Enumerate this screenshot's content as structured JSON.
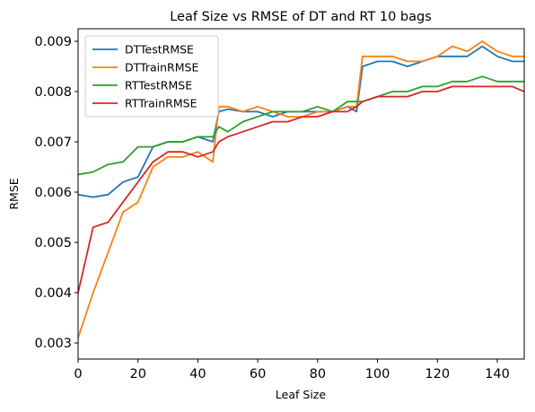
{
  "chart_data": {
    "type": "line",
    "title": "Leaf Size vs RMSE of DT and RT 10 bags",
    "xlabel": "Leaf Size",
    "ylabel": "RMSE",
    "xlim": [
      0,
      149
    ],
    "ylim": [
      0.00268,
      0.00925
    ],
    "xticks": [
      0,
      20,
      40,
      60,
      80,
      100,
      120,
      140
    ],
    "yticks": [
      0.003,
      0.004,
      0.005,
      0.006,
      0.007,
      0.008,
      0.009
    ],
    "ytick_labels": [
      "0.003",
      "0.004",
      "0.005",
      "0.006",
      "0.007",
      "0.008",
      "0.009"
    ],
    "grid": false,
    "legend_position": "top-left",
    "x": [
      0,
      5,
      10,
      15,
      20,
      25,
      30,
      35,
      40,
      45,
      47,
      50,
      55,
      60,
      65,
      70,
      75,
      80,
      85,
      90,
      93,
      95,
      100,
      105,
      110,
      115,
      120,
      125,
      130,
      135,
      140,
      145,
      149
    ],
    "series": [
      {
        "name": "DTTestRMSE",
        "color": "#1f77b4",
        "values": [
          0.00595,
          0.0059,
          0.00595,
          0.0062,
          0.0063,
          0.0069,
          0.007,
          0.007,
          0.0071,
          0.007,
          0.0076,
          0.00765,
          0.0076,
          0.0076,
          0.0075,
          0.0076,
          0.0076,
          0.0076,
          0.0076,
          0.0077,
          0.0076,
          0.0085,
          0.0086,
          0.0086,
          0.0085,
          0.0086,
          0.0087,
          0.0087,
          0.0087,
          0.0089,
          0.0087,
          0.0086,
          0.0086
        ]
      },
      {
        "name": "DTTrainRMSE",
        "color": "#ff7f0e",
        "values": [
          0.0031,
          0.004,
          0.0048,
          0.0056,
          0.0058,
          0.0065,
          0.0067,
          0.0067,
          0.0068,
          0.0066,
          0.0077,
          0.0077,
          0.0076,
          0.0077,
          0.0076,
          0.0075,
          0.0075,
          0.0076,
          0.0076,
          0.0077,
          0.0077,
          0.0087,
          0.0087,
          0.0087,
          0.0086,
          0.0086,
          0.0087,
          0.0089,
          0.0088,
          0.009,
          0.0088,
          0.0087,
          0.0087
        ]
      },
      {
        "name": "RTTestRMSE",
        "color": "#2ca02c",
        "values": [
          0.00635,
          0.0064,
          0.00655,
          0.0066,
          0.0069,
          0.0069,
          0.007,
          0.007,
          0.0071,
          0.0071,
          0.0073,
          0.0072,
          0.0074,
          0.0075,
          0.0076,
          0.0076,
          0.0076,
          0.0077,
          0.0076,
          0.0078,
          0.0078,
          0.0078,
          0.0079,
          0.008,
          0.008,
          0.0081,
          0.0081,
          0.0082,
          0.0082,
          0.0083,
          0.0082,
          0.0082,
          0.0082
        ]
      },
      {
        "name": "RTTrainRMSE",
        "color": "#d62728",
        "values": [
          0.004,
          0.0053,
          0.0054,
          0.0058,
          0.0062,
          0.0066,
          0.0068,
          0.0068,
          0.0067,
          0.0068,
          0.007,
          0.0071,
          0.0072,
          0.0073,
          0.0074,
          0.0074,
          0.0075,
          0.0075,
          0.0076,
          0.0076,
          0.0077,
          0.0078,
          0.0079,
          0.0079,
          0.0079,
          0.008,
          0.008,
          0.0081,
          0.0081,
          0.0081,
          0.0081,
          0.0081,
          0.008
        ]
      }
    ]
  }
}
